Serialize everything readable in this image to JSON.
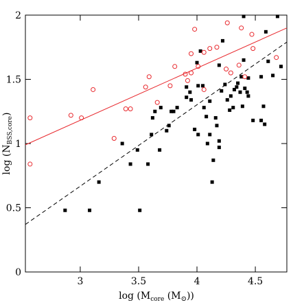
{
  "chart_data": {
    "type": "scatter",
    "xlabel": [
      "log (M",
      "core",
      " (M",
      "⊙",
      "))"
    ],
    "ylabel": [
      "log (N",
      "BSS,core",
      ")"
    ],
    "xlim": [
      2.53,
      4.77
    ],
    "ylim": [
      0,
      2
    ],
    "xticks": [
      3,
      3.5,
      4,
      4.5
    ],
    "yticks": [
      0,
      0.5,
      1,
      1.5,
      2
    ],
    "series": [
      {
        "style": "square",
        "color": "#000000",
        "x": [
          2.87,
          3.08,
          3.16,
          3.36,
          3.43,
          3.49,
          3.51,
          3.58,
          3.61,
          3.62,
          3.64,
          3.68,
          3.69,
          3.74,
          3.76,
          3.78,
          3.8,
          3.83,
          3.91,
          3.91,
          3.94,
          3.95,
          3.98,
          4.01,
          4.01,
          4.0,
          4.03,
          4.05,
          4.06,
          4.08,
          4.09,
          4.11,
          4.11,
          4.13,
          4.14,
          4.16,
          4.17,
          4.19,
          4.19,
          4.19,
          4.21,
          4.22,
          4.24,
          4.26,
          4.28,
          4.29,
          4.31,
          4.32,
          4.34,
          4.35,
          4.37,
          4.38,
          4.39,
          4.4,
          4.4,
          4.41,
          4.43,
          4.44,
          4.44,
          4.48,
          4.55,
          4.55,
          4.57,
          4.58,
          4.59,
          4.61,
          4.65,
          4.69,
          4.72
        ],
        "values": [
          0.48,
          0.48,
          0.7,
          1.0,
          0.84,
          0.95,
          0.48,
          0.84,
          1.07,
          1.2,
          1.25,
          0.95,
          1.28,
          1.1,
          1.14,
          1.25,
          1.25,
          1.28,
          1.36,
          1.44,
          1.4,
          1.34,
          1.11,
          1.07,
          1.45,
          1.63,
          1.72,
          1.45,
          1.28,
          1.21,
          1.0,
          1.07,
          1.33,
          0.7,
          0.87,
          1.2,
          1.14,
          1.61,
          1.02,
          0.97,
          1.41,
          1.8,
          1.46,
          1.34,
          1.26,
          1.37,
          1.28,
          1.42,
          1.44,
          1.47,
          1.4,
          1.52,
          1.29,
          1.99,
          1.65,
          1.43,
          1.4,
          1.37,
          1.51,
          1.18,
          1.18,
          1.52,
          1.29,
          1.15,
          1.87,
          1.64,
          1.53,
          1.99,
          1.6
        ]
      },
      {
        "style": "circle",
        "color": "#e8282d",
        "x": [
          2.57,
          2.57,
          2.92,
          3.01,
          3.11,
          3.29,
          3.39,
          3.43,
          3.56,
          3.59,
          3.66,
          3.77,
          3.81,
          3.9,
          3.92,
          3.95,
          3.95,
          3.98,
          4.01,
          4.06,
          4.06,
          4.11,
          4.17,
          4.25,
          4.26,
          4.29,
          4.36,
          4.38,
          4.41,
          4.47,
          4.48,
          4.68
        ],
        "values": [
          1.2,
          0.84,
          1.22,
          1.2,
          1.42,
          1.04,
          1.27,
          1.27,
          1.44,
          1.52,
          1.32,
          1.45,
          1.6,
          1.54,
          1.49,
          1.7,
          1.55,
          1.89,
          1.6,
          1.71,
          1.42,
          1.74,
          1.75,
          1.58,
          1.94,
          1.55,
          1.61,
          1.9,
          1.52,
          1.85,
          1.74,
          1.67
        ]
      },
      {
        "style": "solid",
        "color": "#e8282d",
        "x": [
          2.53,
          4.77
        ],
        "values": [
          0.99,
          1.9
        ]
      },
      {
        "style": "dashed",
        "color": "#000000",
        "x": [
          2.53,
          4.77
        ],
        "values": [
          0.37,
          1.79
        ]
      }
    ]
  }
}
